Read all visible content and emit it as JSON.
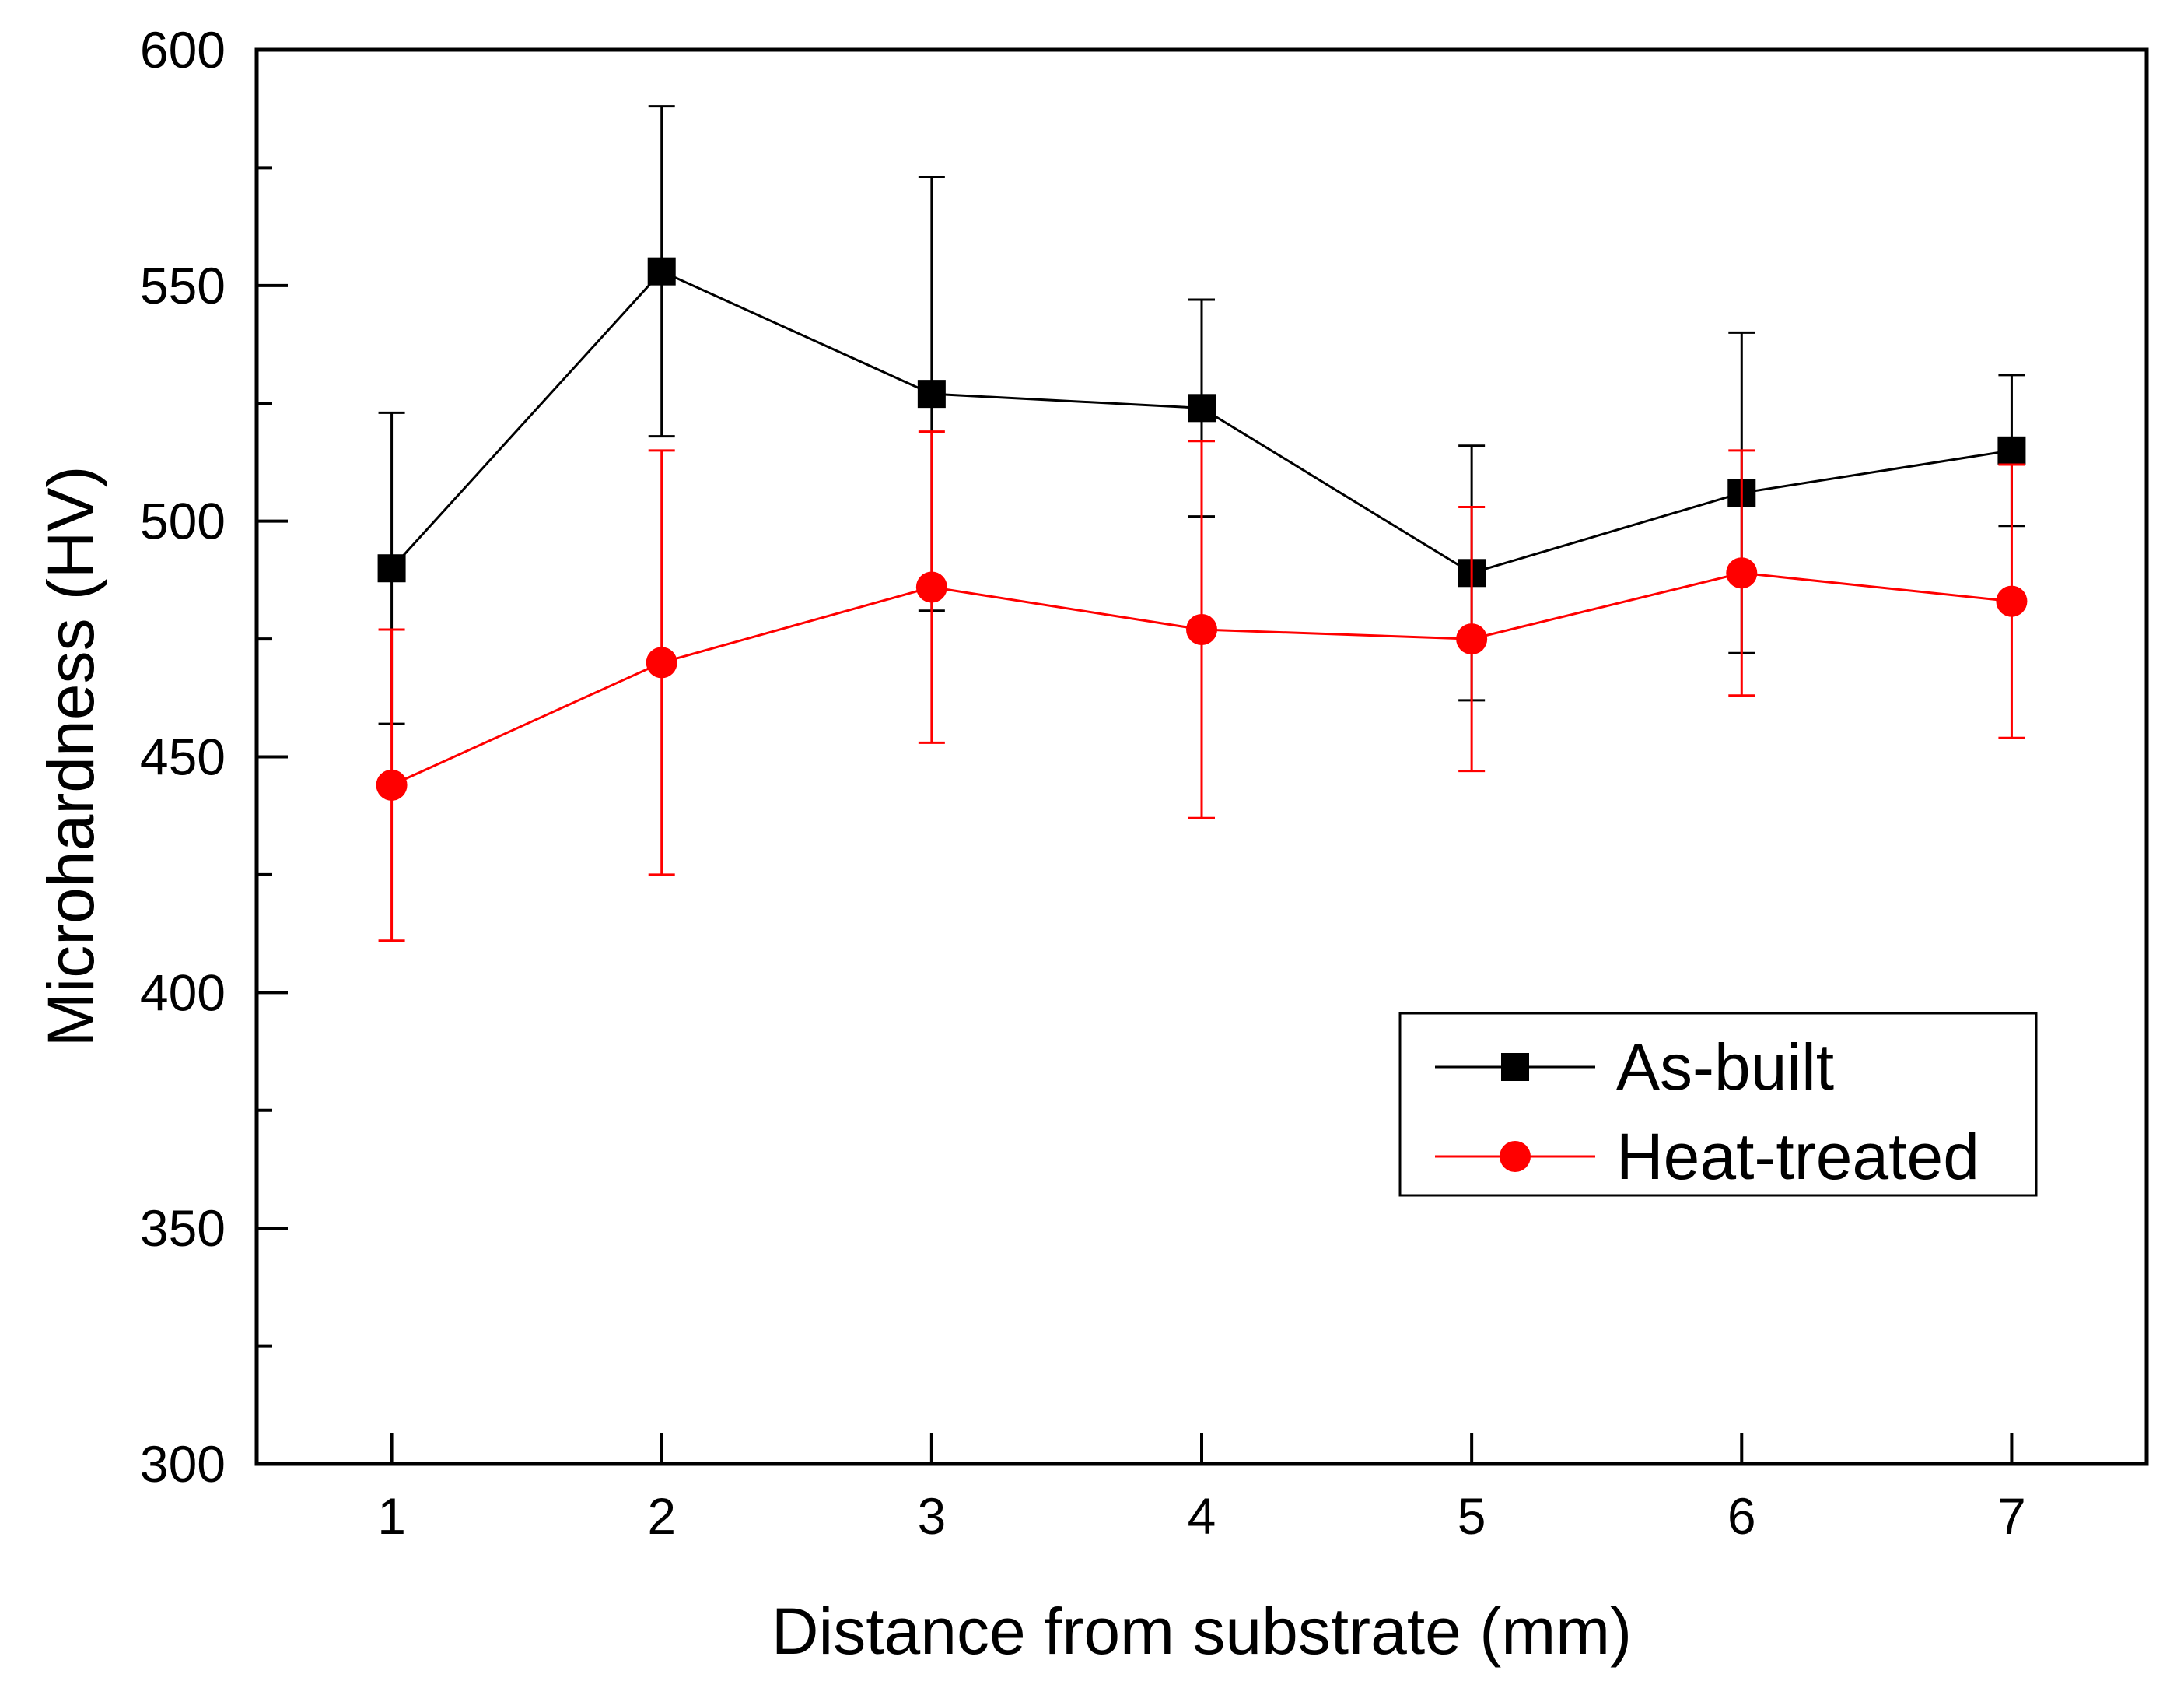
{
  "chart_data": {
    "type": "line",
    "title": "",
    "xlabel": "Distance from substrate (mm)",
    "ylabel": "Microhardness (HV)",
    "xlim": [
      0.5,
      7.5
    ],
    "ylim": [
      300,
      600
    ],
    "x": [
      1,
      2,
      3,
      4,
      5,
      6,
      7
    ],
    "x_tick_labels": [
      "1",
      "2",
      "3",
      "4",
      "5",
      "6",
      "7"
    ],
    "y_ticks": [
      300,
      350,
      400,
      450,
      500,
      550,
      600
    ],
    "y_tick_labels": [
      "300",
      "350",
      "400",
      "450",
      "500",
      "550",
      "600"
    ],
    "grid": false,
    "legend_position": "right",
    "series": [
      {
        "name": "As-built",
        "color": "#000000",
        "marker": "square",
        "values": [
          490,
          553,
          527,
          524,
          489,
          506,
          515
        ],
        "error": [
          33,
          35,
          46,
          23,
          27,
          34,
          16
        ]
      },
      {
        "name": "Heat-treated",
        "color": "#ff0000",
        "marker": "circle",
        "values": [
          444,
          470,
          486,
          477,
          475,
          489,
          483
        ],
        "error": [
          33,
          45,
          33,
          40,
          28,
          26,
          29
        ]
      }
    ]
  }
}
